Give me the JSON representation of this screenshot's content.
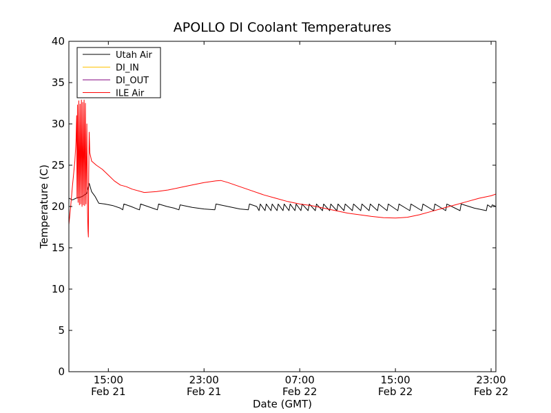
{
  "chart_data": {
    "type": "line",
    "title": "APOLLO DI Coolant Temperatures",
    "xlabel": "Date (GMT)",
    "ylabel": "Temperature (C)",
    "xlim": [
      11.7,
      47.4
    ],
    "ylim": [
      0,
      40
    ],
    "yticks": [
      0,
      5,
      10,
      15,
      20,
      25,
      30,
      35,
      40
    ],
    "xticks": [
      {
        "hours": 15,
        "time": "15:00",
        "date": "Feb 21"
      },
      {
        "hours": 23,
        "time": "23:00",
        "date": "Feb 21"
      },
      {
        "hours": 31,
        "time": "07:00",
        "date": "Feb 22"
      },
      {
        "hours": 39,
        "time": "15:00",
        "date": "Feb 22"
      },
      {
        "hours": 47,
        "time": "23:00",
        "date": "Feb 22"
      }
    ],
    "x_units": "hours since Feb 21 00:00 GMT",
    "legend_position": "top-left",
    "series": [
      {
        "name": "Utah Air",
        "color": "#000000",
        "points": [
          [
            11.7,
            21.0
          ],
          [
            12.0,
            20.8
          ],
          [
            12.3,
            21.0
          ],
          [
            12.8,
            21.2
          ],
          [
            13.2,
            21.6
          ],
          [
            13.4,
            22.8
          ],
          [
            13.6,
            21.8
          ],
          [
            13.9,
            21.2
          ],
          [
            14.2,
            20.4
          ],
          [
            14.7,
            20.3
          ],
          [
            15.4,
            20.1
          ],
          [
            16.0,
            19.8
          ],
          [
            16.2,
            19.6
          ],
          [
            16.3,
            20.3
          ],
          [
            16.9,
            20.0
          ],
          [
            17.4,
            19.7
          ],
          [
            17.6,
            19.6
          ],
          [
            17.7,
            20.3
          ],
          [
            18.3,
            20.0
          ],
          [
            18.9,
            19.7
          ],
          [
            19.1,
            19.6
          ],
          [
            19.2,
            20.3
          ],
          [
            19.9,
            20.0
          ],
          [
            20.5,
            19.8
          ],
          [
            20.9,
            19.6
          ],
          [
            21.0,
            20.2
          ],
          [
            22.0,
            19.9
          ],
          [
            23.0,
            19.7
          ],
          [
            23.9,
            19.6
          ],
          [
            24.0,
            20.3
          ],
          [
            25.0,
            20.0
          ],
          [
            26.0,
            19.7
          ],
          [
            26.7,
            19.6
          ],
          [
            26.8,
            20.3
          ],
          [
            27.4,
            20.0
          ],
          [
            27.6,
            19.5
          ],
          [
            27.7,
            20.3
          ],
          [
            28.1,
            19.5
          ],
          [
            28.2,
            20.3
          ],
          [
            28.6,
            19.5
          ],
          [
            28.7,
            20.3
          ],
          [
            29.1,
            19.5
          ],
          [
            29.2,
            20.3
          ],
          [
            29.6,
            19.5
          ],
          [
            29.7,
            20.3
          ],
          [
            30.1,
            19.5
          ],
          [
            30.2,
            20.3
          ],
          [
            30.6,
            19.5
          ],
          [
            30.7,
            20.3
          ],
          [
            31.1,
            19.5
          ],
          [
            31.2,
            20.3
          ],
          [
            31.7,
            19.5
          ],
          [
            31.8,
            20.3
          ],
          [
            32.3,
            19.5
          ],
          [
            32.4,
            20.3
          ],
          [
            32.9,
            19.5
          ],
          [
            33.0,
            20.3
          ],
          [
            33.5,
            19.5
          ],
          [
            33.6,
            20.3
          ],
          [
            34.1,
            19.5
          ],
          [
            34.2,
            20.3
          ],
          [
            34.7,
            19.5
          ],
          [
            34.8,
            20.3
          ],
          [
            35.4,
            19.5
          ],
          [
            35.5,
            20.3
          ],
          [
            36.1,
            19.5
          ],
          [
            36.2,
            20.3
          ],
          [
            36.8,
            19.5
          ],
          [
            36.9,
            20.3
          ],
          [
            37.5,
            19.5
          ],
          [
            37.6,
            20.3
          ],
          [
            38.3,
            19.5
          ],
          [
            38.4,
            20.3
          ],
          [
            39.2,
            19.5
          ],
          [
            39.3,
            20.3
          ],
          [
            40.2,
            19.5
          ],
          [
            40.3,
            20.3
          ],
          [
            41.2,
            19.5
          ],
          [
            41.3,
            20.3
          ],
          [
            42.2,
            19.5
          ],
          [
            42.3,
            20.3
          ],
          [
            43.2,
            19.5
          ],
          [
            43.3,
            20.3
          ],
          [
            44.4,
            19.5
          ],
          [
            44.5,
            20.3
          ],
          [
            45.6,
            19.8
          ],
          [
            46.6,
            19.5
          ],
          [
            46.7,
            20.2
          ],
          [
            47.0,
            19.9
          ],
          [
            47.1,
            20.2
          ],
          [
            47.4,
            20.0
          ]
        ]
      },
      {
        "name": "DI_IN",
        "color": "#ffc200",
        "points": []
      },
      {
        "name": "DI_OUT",
        "color": "#80007f",
        "points": []
      },
      {
        "name": "ILE Air",
        "color": "#ff0000",
        "points": [
          [
            11.7,
            17.8
          ],
          [
            11.85,
            20.0
          ],
          [
            12.0,
            22.5
          ],
          [
            12.2,
            25.5
          ],
          [
            12.3,
            28.0
          ],
          [
            12.35,
            31.0
          ],
          [
            12.38,
            21.0
          ],
          [
            12.42,
            32.3
          ],
          [
            12.47,
            20.5
          ],
          [
            12.53,
            32.8
          ],
          [
            12.58,
            20.2
          ],
          [
            12.64,
            32.4
          ],
          [
            12.69,
            20.3
          ],
          [
            12.75,
            32.9
          ],
          [
            12.8,
            20.0
          ],
          [
            12.86,
            32.6
          ],
          [
            12.91,
            20.2
          ],
          [
            12.97,
            32.9
          ],
          [
            13.02,
            20.1
          ],
          [
            13.08,
            32.5
          ],
          [
            13.13,
            20.3
          ],
          [
            13.2,
            30.0
          ],
          [
            13.26,
            19.3
          ],
          [
            13.3,
            17.0
          ],
          [
            13.33,
            16.3
          ],
          [
            13.36,
            24.0
          ],
          [
            13.4,
            29.0
          ],
          [
            13.45,
            26.5
          ],
          [
            13.6,
            25.5
          ],
          [
            14.0,
            25.0
          ],
          [
            14.5,
            24.5
          ],
          [
            15.0,
            23.8
          ],
          [
            15.5,
            23.1
          ],
          [
            16.0,
            22.6
          ],
          [
            16.5,
            22.4
          ],
          [
            17.0,
            22.1
          ],
          [
            18.0,
            21.7
          ],
          [
            19.0,
            21.8
          ],
          [
            20.0,
            22.0
          ],
          [
            21.0,
            22.3
          ],
          [
            22.0,
            22.6
          ],
          [
            23.0,
            22.9
          ],
          [
            23.5,
            23.0
          ],
          [
            24.0,
            23.1
          ],
          [
            24.4,
            23.15
          ],
          [
            25.0,
            22.9
          ],
          [
            26.0,
            22.4
          ],
          [
            27.0,
            21.9
          ],
          [
            28.0,
            21.4
          ],
          [
            29.0,
            21.0
          ],
          [
            30.0,
            20.6
          ],
          [
            31.0,
            20.3
          ],
          [
            32.0,
            20.1
          ],
          [
            33.0,
            19.8
          ],
          [
            34.0,
            19.5
          ],
          [
            35.0,
            19.2
          ],
          [
            36.0,
            19.0
          ],
          [
            37.0,
            18.8
          ],
          [
            38.0,
            18.65
          ],
          [
            39.0,
            18.6
          ],
          [
            39.5,
            18.65
          ],
          [
            40.0,
            18.7
          ],
          [
            41.0,
            19.0
          ],
          [
            42.0,
            19.4
          ],
          [
            43.0,
            19.8
          ],
          [
            44.0,
            20.2
          ],
          [
            45.0,
            20.6
          ],
          [
            46.0,
            21.0
          ],
          [
            47.0,
            21.3
          ],
          [
            47.4,
            21.5
          ]
        ]
      }
    ]
  }
}
